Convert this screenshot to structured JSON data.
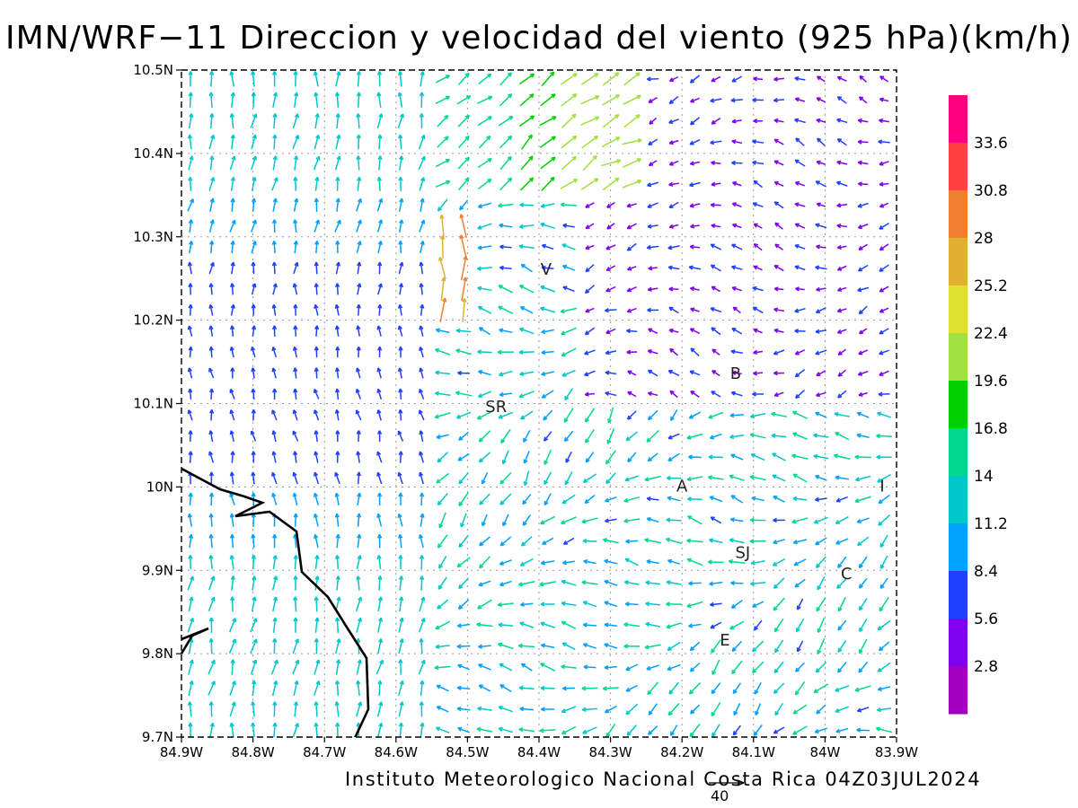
{
  "title": "IMN/WRF−11 Direccion y velocidad del viento (925 hPa)(km/h)",
  "footer": "Instituto Meteorologico Nacional Costa Rica 04Z03JUL2024",
  "reference_vector_label": "40",
  "axes": {
    "x_ticks": [
      "84.9W",
      "84.8W",
      "84.7W",
      "84.6W",
      "84.5W",
      "84.4W",
      "84.3W",
      "84.2W",
      "84.1W",
      "84W",
      "83.9W"
    ],
    "y_ticks": [
      "10.5N",
      "10.4N",
      "10.3N",
      "10.2N",
      "10.1N",
      "10N",
      "9.9N",
      "9.8N",
      "9.7N"
    ],
    "lon_range": [
      -84.9,
      -83.9
    ],
    "lat_range": [
      9.7,
      10.5
    ],
    "grid": "dotted"
  },
  "colorbar": {
    "labels": [
      "33.6",
      "30.8",
      "28",
      "25.2",
      "22.4",
      "19.6",
      "16.8",
      "14",
      "11.2",
      "8.4",
      "5.6",
      "2.8"
    ],
    "colors": [
      "#ff0080",
      "#ff4040",
      "#f08030",
      "#e0b030",
      "#e0e030",
      "#a0e040",
      "#00d000",
      "#00d890",
      "#00c8c8",
      "#00a0ff",
      "#2040ff",
      "#8000f0",
      "#a000c0"
    ]
  },
  "places": [
    {
      "label": "V",
      "lon": -84.39,
      "lat": 10.26
    },
    {
      "label": "SR",
      "lon": -84.46,
      "lat": 10.095
    },
    {
      "label": "B",
      "lon": -84.125,
      "lat": 10.135
    },
    {
      "label": "A",
      "lon": -84.2,
      "lat": 10.0
    },
    {
      "label": "I",
      "lon": -83.92,
      "lat": 10.0
    },
    {
      "label": "SJ",
      "lon": -84.115,
      "lat": 9.92
    },
    {
      "label": "C",
      "lon": -83.97,
      "lat": 9.895
    },
    {
      "label": "E",
      "lon": -84.14,
      "lat": 9.815
    }
  ]
}
